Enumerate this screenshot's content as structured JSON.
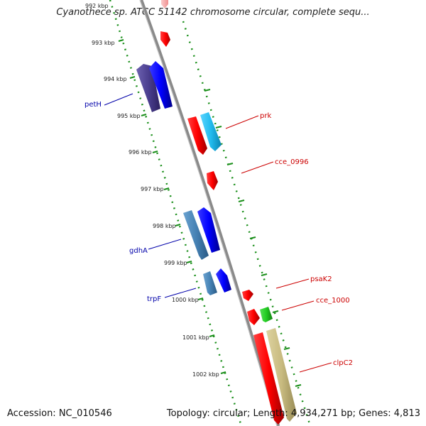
{
  "header": {
    "title": "Cyanothece sp. ATCC 51142 chromosome circular, complete sequ..."
  },
  "footer": {
    "accession": "Accession: NC_010546",
    "stats": "Topology: circular; Length: 4,934,271 bp; Genes: 4,813"
  },
  "map": {
    "colors": {
      "backbone": "#8a8a8a",
      "ticks": "#1a8f1a",
      "forward_label": "#cc0000",
      "reverse_label": "#0000aa",
      "faded_label": "#ff9a9a"
    },
    "kbp_labels": [
      "992 kbp",
      "993 kbp",
      "994 kbp",
      "995 kbp",
      "996 kbp",
      "997 kbp",
      "998 kbp",
      "999 kbp",
      "1000 kbp",
      "1001 kbp",
      "1002 kbp"
    ],
    "labels": {
      "petH": "petH",
      "prk": "prk",
      "cce_0996": "cce_0996",
      "gdhA": "gdhA",
      "trpF": "trpF",
      "psaK2": "psaK2",
      "cce_1000": "cce_1000",
      "clpC2": "clpC2"
    },
    "genes": [
      {
        "name": "faded-top-gene",
        "strand": "+",
        "color": "#f5a0a0"
      },
      {
        "name": "red-gene-993",
        "strand": "+",
        "color": "#ff0000"
      },
      {
        "name": "dark-blue-gene-petH",
        "strand": "-",
        "color": "#4b3f8f"
      },
      {
        "name": "blue-gene-994",
        "strand": "-",
        "color": "#0000ff"
      },
      {
        "name": "red-gene-prk",
        "strand": "+",
        "color": "#ff0000"
      },
      {
        "name": "cyan-gene-prk",
        "strand": "+",
        "color": "#22bbee"
      },
      {
        "name": "red-gene-cce_0996",
        "strand": "+",
        "color": "#ff0000"
      },
      {
        "name": "steel-blue-gene-gdhA",
        "strand": "-",
        "color": "#4682b4"
      },
      {
        "name": "blue-gene-998",
        "strand": "-",
        "color": "#0000ff"
      },
      {
        "name": "steel-blue-gene-trpF",
        "strand": "-",
        "color": "#4682b4"
      },
      {
        "name": "blue-gene-999",
        "strand": "-",
        "color": "#0000ff"
      },
      {
        "name": "red-gene-psaK2",
        "strand": "+",
        "color": "#ff0000"
      },
      {
        "name": "red-gene-1000",
        "strand": "+",
        "color": "#ff0000"
      },
      {
        "name": "green-gene-cce_1000",
        "strand": "+",
        "color": "#22cc22"
      },
      {
        "name": "red-gene-clpC2",
        "strand": "+",
        "color": "#ff0000"
      },
      {
        "name": "khaki-gene-clpC2",
        "strand": "+",
        "color": "#c8bb80"
      }
    ]
  }
}
